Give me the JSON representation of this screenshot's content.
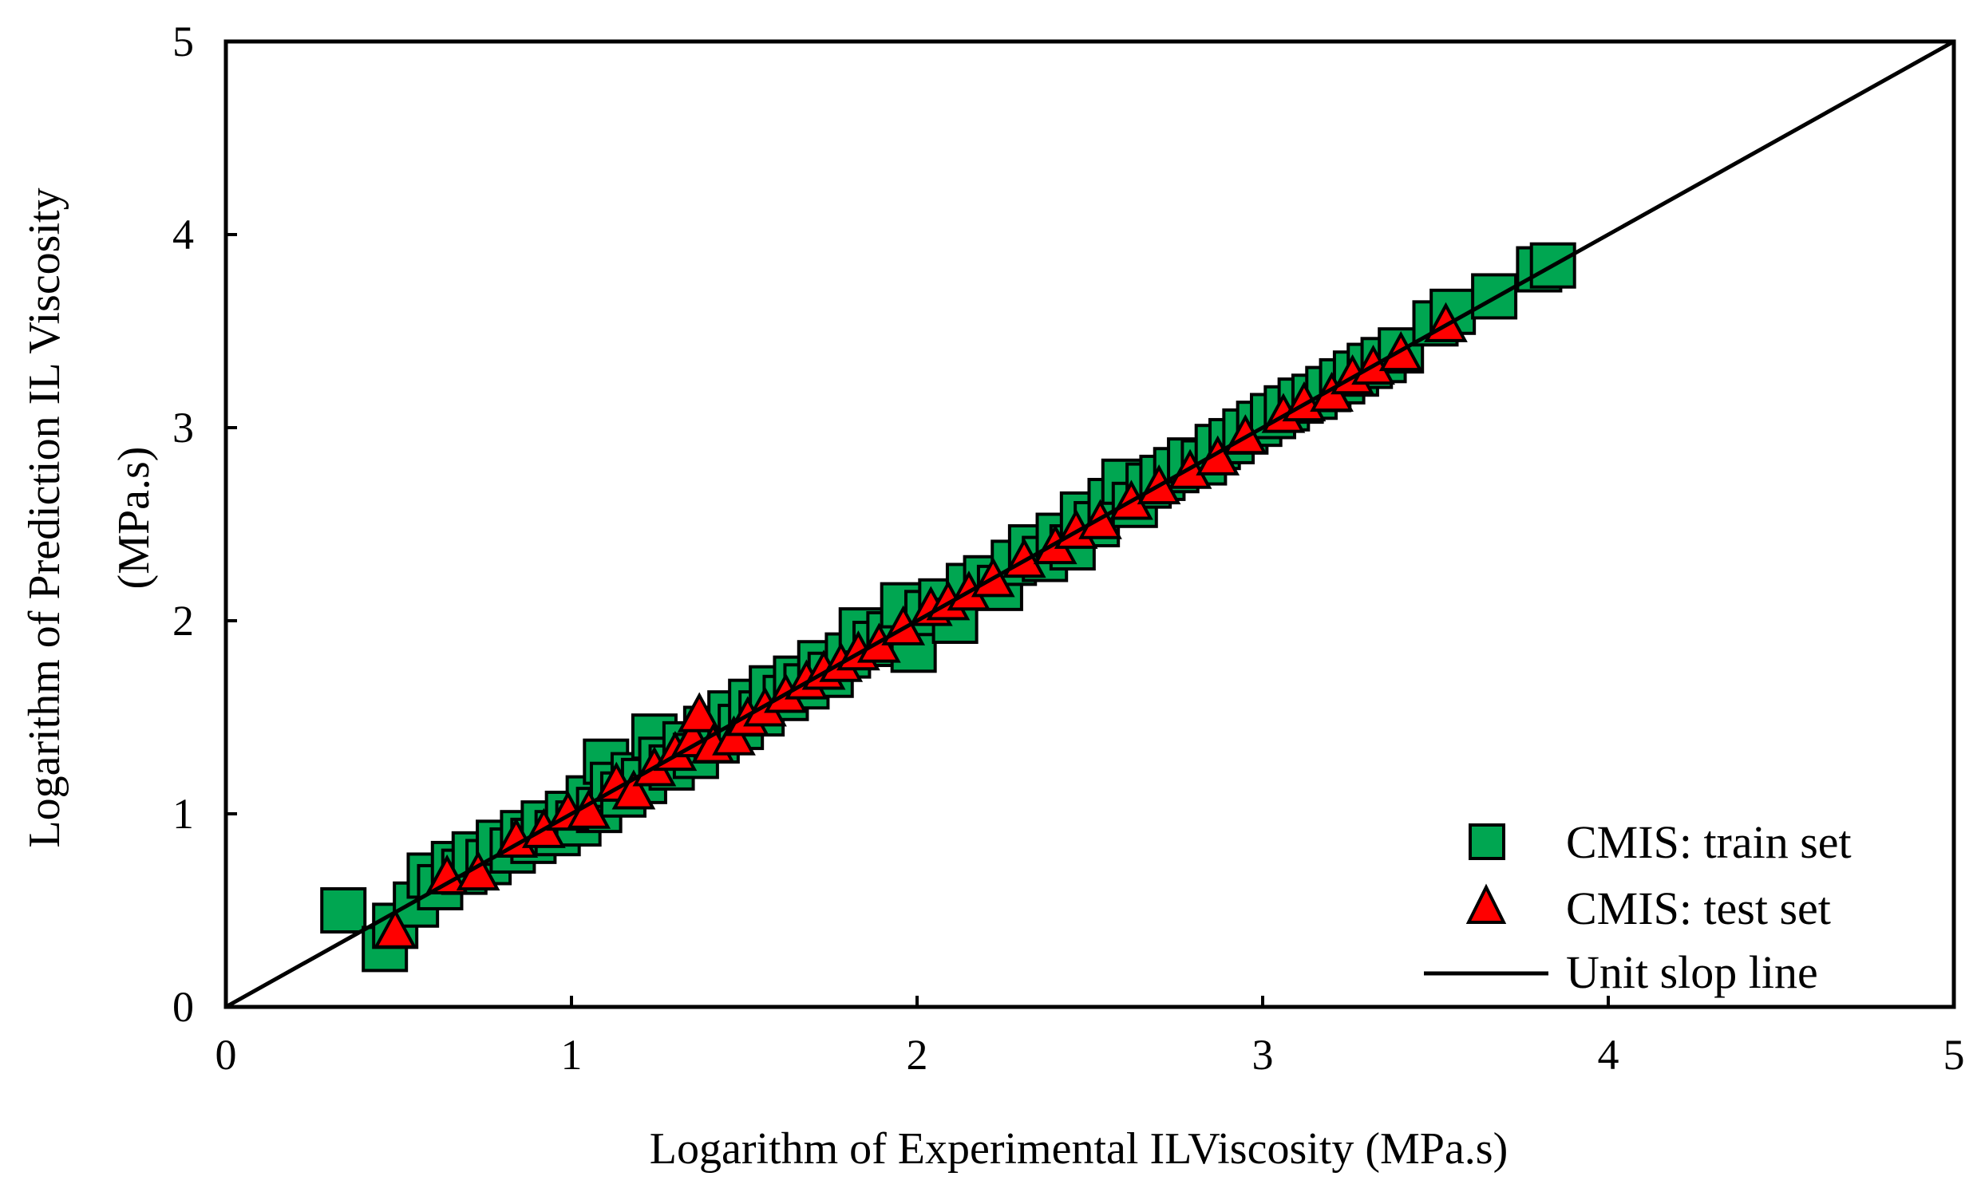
{
  "chart_data": {
    "type": "scatter",
    "title": "",
    "xlabel": "Logarithm of Experimental ILViscosity  (MPa.s)",
    "ylabel_line1": "Logarithm of Prediction IL Viscosity",
    "ylabel_line2": "(MPa.s)",
    "xlim": [
      0,
      5
    ],
    "ylim": [
      0,
      5
    ],
    "xticks": [
      "0",
      "1",
      "2",
      "3",
      "4",
      "5"
    ],
    "yticks": [
      "0",
      "1",
      "2",
      "3",
      "4",
      "5"
    ],
    "grid": false,
    "legend_position": "bottom-right",
    "series": [
      {
        "name": "CMIS: train set",
        "marker": "square",
        "color": "#00a651",
        "points": [
          [
            0.34,
            0.5
          ],
          [
            0.46,
            0.3
          ],
          [
            0.49,
            0.42
          ],
          [
            0.55,
            0.53
          ],
          [
            0.59,
            0.68
          ],
          [
            0.62,
            0.62
          ],
          [
            0.66,
            0.74
          ],
          [
            0.69,
            0.7
          ],
          [
            0.72,
            0.79
          ],
          [
            0.76,
            0.75
          ],
          [
            0.79,
            0.85
          ],
          [
            0.83,
            0.81
          ],
          [
            0.86,
            0.9
          ],
          [
            0.89,
            0.86
          ],
          [
            0.92,
            0.95
          ],
          [
            0.96,
            0.9
          ],
          [
            0.99,
            1.0
          ],
          [
            1.02,
            0.95
          ],
          [
            1.05,
            1.08
          ],
          [
            1.08,
            1.02
          ],
          [
            1.1,
            1.27
          ],
          [
            1.12,
            1.15
          ],
          [
            1.15,
            1.1
          ],
          [
            1.18,
            1.2
          ],
          [
            1.21,
            1.17
          ],
          [
            1.24,
            1.4
          ],
          [
            1.26,
            1.28
          ],
          [
            1.29,
            1.24
          ],
          [
            1.33,
            1.36
          ],
          [
            1.36,
            1.3
          ],
          [
            1.39,
            1.44
          ],
          [
            1.42,
            1.38
          ],
          [
            1.46,
            1.52
          ],
          [
            1.49,
            1.45
          ],
          [
            1.52,
            1.58
          ],
          [
            1.55,
            1.52
          ],
          [
            1.58,
            1.65
          ],
          [
            1.62,
            1.6
          ],
          [
            1.65,
            1.7
          ],
          [
            1.68,
            1.66
          ],
          [
            1.72,
            1.78
          ],
          [
            1.75,
            1.72
          ],
          [
            1.8,
            1.82
          ],
          [
            1.84,
            1.95
          ],
          [
            1.88,
            1.88
          ],
          [
            1.92,
            1.93
          ],
          [
            1.96,
            2.08
          ],
          [
            1.99,
            1.85
          ],
          [
            2.03,
            2.04
          ],
          [
            2.07,
            2.1
          ],
          [
            2.11,
            2.0
          ],
          [
            2.15,
            2.18
          ],
          [
            2.2,
            2.22
          ],
          [
            2.24,
            2.17
          ],
          [
            2.28,
            2.3
          ],
          [
            2.33,
            2.38
          ],
          [
            2.37,
            2.32
          ],
          [
            2.41,
            2.44
          ],
          [
            2.45,
            2.38
          ],
          [
            2.48,
            2.55
          ],
          [
            2.52,
            2.5
          ],
          [
            2.56,
            2.62
          ],
          [
            2.6,
            2.72
          ],
          [
            2.63,
            2.6
          ],
          [
            2.67,
            2.7
          ],
          [
            2.71,
            2.74
          ],
          [
            2.75,
            2.78
          ],
          [
            2.79,
            2.83
          ],
          [
            2.83,
            2.82
          ],
          [
            2.87,
            2.9
          ],
          [
            2.91,
            2.93
          ],
          [
            2.95,
            2.98
          ],
          [
            2.99,
            3.02
          ],
          [
            3.03,
            3.06
          ],
          [
            3.07,
            3.1
          ],
          [
            3.11,
            3.14
          ],
          [
            3.15,
            3.16
          ],
          [
            3.19,
            3.2
          ],
          [
            3.23,
            3.24
          ],
          [
            3.27,
            3.28
          ],
          [
            3.31,
            3.32
          ],
          [
            3.35,
            3.35
          ],
          [
            3.4,
            3.4
          ],
          [
            3.5,
            3.54
          ],
          [
            3.55,
            3.6
          ],
          [
            3.67,
            3.68
          ],
          [
            3.8,
            3.82
          ],
          [
            3.84,
            3.84
          ]
        ]
      },
      {
        "name": "CMIS: test set",
        "marker": "triangle",
        "color": "#ff0000",
        "points": [
          [
            0.49,
            0.38
          ],
          [
            0.64,
            0.66
          ],
          [
            0.73,
            0.68
          ],
          [
            0.84,
            0.85
          ],
          [
            0.92,
            0.9
          ],
          [
            0.99,
            0.99
          ],
          [
            1.05,
            1.0
          ],
          [
            1.13,
            1.14
          ],
          [
            1.18,
            1.1
          ],
          [
            1.24,
            1.22
          ],
          [
            1.3,
            1.3
          ],
          [
            1.35,
            1.37
          ],
          [
            1.37,
            1.5
          ],
          [
            1.41,
            1.34
          ],
          [
            1.47,
            1.38
          ],
          [
            1.51,
            1.48
          ],
          [
            1.56,
            1.53
          ],
          [
            1.62,
            1.6
          ],
          [
            1.68,
            1.67
          ],
          [
            1.73,
            1.72
          ],
          [
            1.78,
            1.76
          ],
          [
            1.83,
            1.82
          ],
          [
            1.89,
            1.86
          ],
          [
            1.96,
            1.95
          ],
          [
            2.04,
            2.05
          ],
          [
            2.09,
            2.08
          ],
          [
            2.15,
            2.13
          ],
          [
            2.22,
            2.2
          ],
          [
            2.31,
            2.3
          ],
          [
            2.4,
            2.37
          ],
          [
            2.46,
            2.45
          ],
          [
            2.53,
            2.5
          ],
          [
            2.62,
            2.6
          ],
          [
            2.7,
            2.68
          ],
          [
            2.79,
            2.76
          ],
          [
            2.87,
            2.83
          ],
          [
            2.95,
            2.94
          ],
          [
            3.06,
            3.05
          ],
          [
            3.12,
            3.11
          ],
          [
            3.2,
            3.16
          ],
          [
            3.26,
            3.25
          ],
          [
            3.32,
            3.3
          ],
          [
            3.4,
            3.37
          ],
          [
            3.53,
            3.52
          ]
        ]
      },
      {
        "name": "Unit slop line",
        "marker": "line",
        "color": "#000000",
        "points": [
          [
            0,
            0
          ],
          [
            5,
            5
          ]
        ]
      }
    ]
  }
}
